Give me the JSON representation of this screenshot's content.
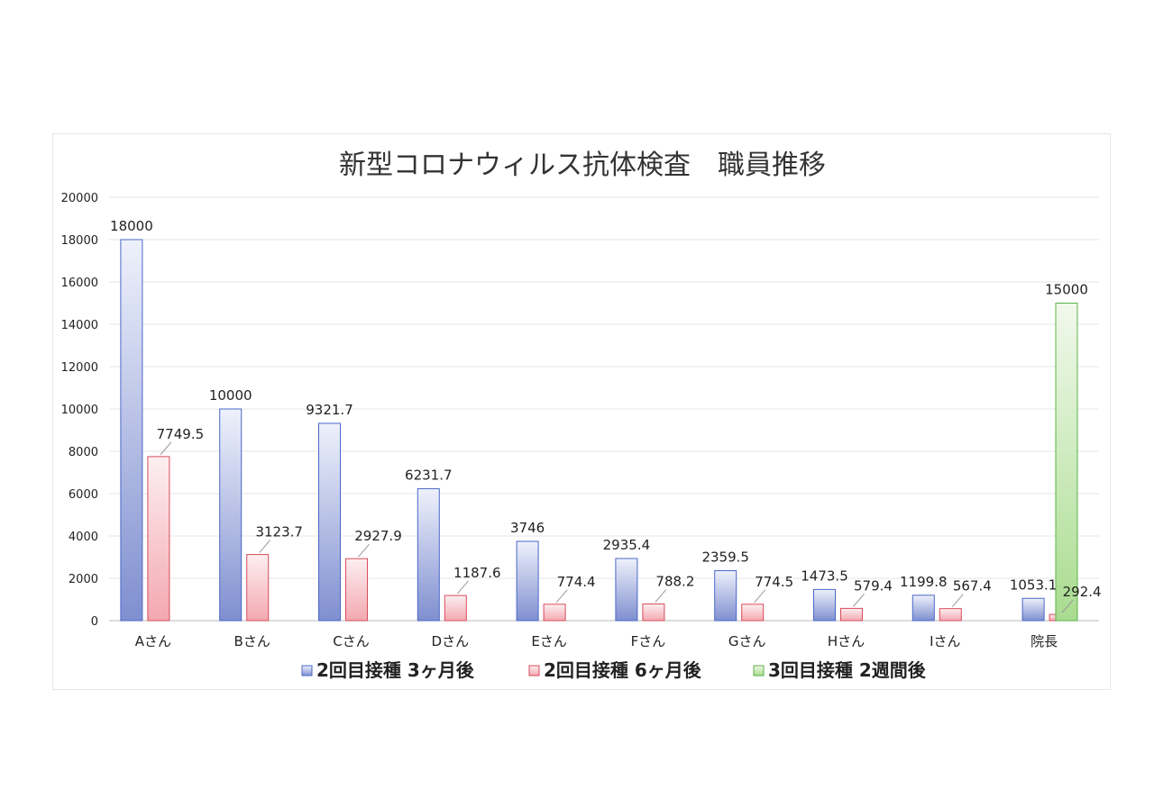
{
  "chart_data": {
    "type": "bar",
    "title": "新型コロナウィルス抗体検査　職員推移",
    "categories": [
      "Aさん",
      "Bさん",
      "Cさん",
      "Dさん",
      "Eさん",
      "Fさん",
      "Gさん",
      "Hさん",
      "Iさん",
      "院長"
    ],
    "series": [
      {
        "name": "2回目接種 3ヶ月後",
        "color": "#8fa3e0",
        "values": [
          18000,
          10000,
          9321.7,
          6231.7,
          3746,
          2935.4,
          2359.5,
          1473.5,
          1199.8,
          1053.1
        ],
        "labels": [
          "18000",
          "10000",
          "9321.7",
          "6231.7",
          "3746",
          "2935.4",
          "2359.5",
          "1473.5",
          "1199.8",
          "1053.1"
        ]
      },
      {
        "name": "2回目接種 6ヶ月後",
        "color": "#f0a0a8",
        "values": [
          7749.5,
          3123.7,
          2927.9,
          1187.6,
          774.4,
          788.2,
          774.5,
          579.4,
          567.4,
          292.4
        ],
        "labels": [
          "7749.5",
          "3123.7",
          "2927.9",
          "1187.6",
          "774.4",
          "788.2",
          "774.5",
          "579.4",
          "567.4",
          "292.4"
        ]
      },
      {
        "name": "3回目接種 2週間後",
        "color": "#a8d890",
        "values": [
          null,
          null,
          null,
          null,
          null,
          null,
          null,
          null,
          null,
          15000
        ],
        "labels": [
          "",
          "",
          "",
          "",
          "",
          "",
          "",
          "",
          "",
          "15000"
        ]
      }
    ],
    "ylim": [
      0,
      20000
    ],
    "yticks": [
      "0",
      "2000",
      "4000",
      "6000",
      "8000",
      "10000",
      "12000",
      "14000",
      "16000",
      "18000",
      "20000"
    ],
    "grid": true,
    "legend_position": "bottom"
  }
}
